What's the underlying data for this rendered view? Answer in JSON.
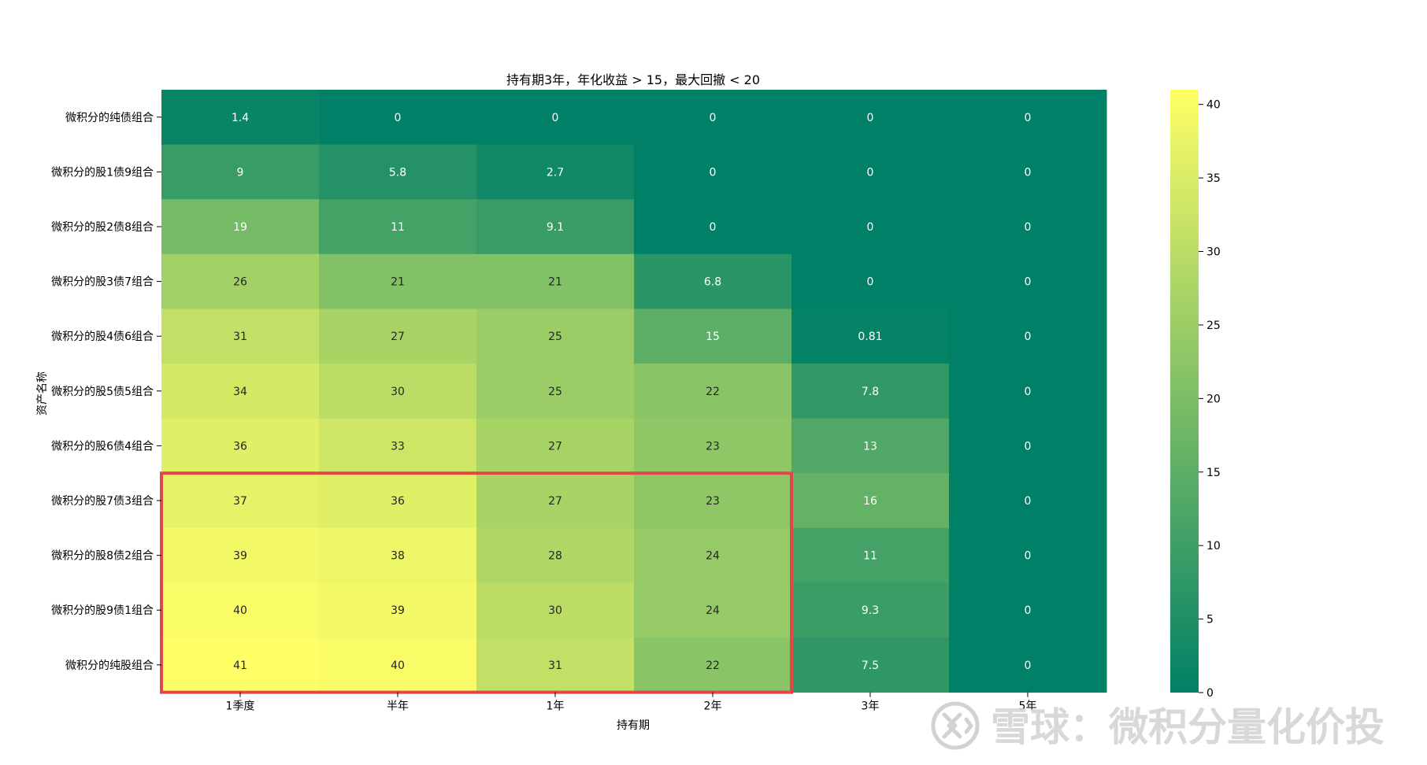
{
  "chart_data": {
    "type": "heatmap",
    "title": "持有期3年，年化收益 > 15，最大回撤 < 20",
    "xlabel": "持有期",
    "ylabel": "资产名称",
    "x_categories": [
      "1季度",
      "半年",
      "1年",
      "2年",
      "3年",
      "5年"
    ],
    "y_categories": [
      "微积分的纯债组合",
      "微积分的股1债9组合",
      "微积分的股2债8组合",
      "微积分的股3债7组合",
      "微积分的股4债6组合",
      "微积分的股5债5组合",
      "微积分的股6债4组合",
      "微积分的股7债3组合",
      "微积分的股8债2组合",
      "微积分的股9债1组合",
      "微积分的纯股组合"
    ],
    "values": [
      [
        1.4,
        0,
        0,
        0,
        0,
        0
      ],
      [
        9,
        5.8,
        2.7,
        0,
        0,
        0
      ],
      [
        19,
        11,
        9.1,
        0,
        0,
        0
      ],
      [
        26,
        21,
        21,
        6.8,
        0,
        0
      ],
      [
        31,
        27,
        25,
        15,
        0.81,
        0
      ],
      [
        34,
        30,
        25,
        22,
        7.8,
        0
      ],
      [
        36,
        33,
        27,
        23,
        13,
        0
      ],
      [
        37,
        36,
        27,
        23,
        16,
        0
      ],
      [
        39,
        38,
        28,
        24,
        11,
        0
      ],
      [
        40,
        39,
        30,
        24,
        9.3,
        0
      ],
      [
        41,
        40,
        31,
        22,
        7.5,
        0
      ]
    ],
    "color_scale": {
      "name": "summer",
      "low_color": "#008066",
      "high_color": "#ffff66",
      "vmin": 0,
      "vmax": 41,
      "ticks": [
        "0",
        "5",
        "10",
        "15",
        "20",
        "25",
        "30",
        "35",
        "40"
      ]
    },
    "highlight": {
      "rows": [
        7,
        10
      ],
      "cols": [
        0,
        3
      ],
      "color": "#e04848"
    }
  },
  "watermark": {
    "text": "雪球：微积分量化价投"
  }
}
